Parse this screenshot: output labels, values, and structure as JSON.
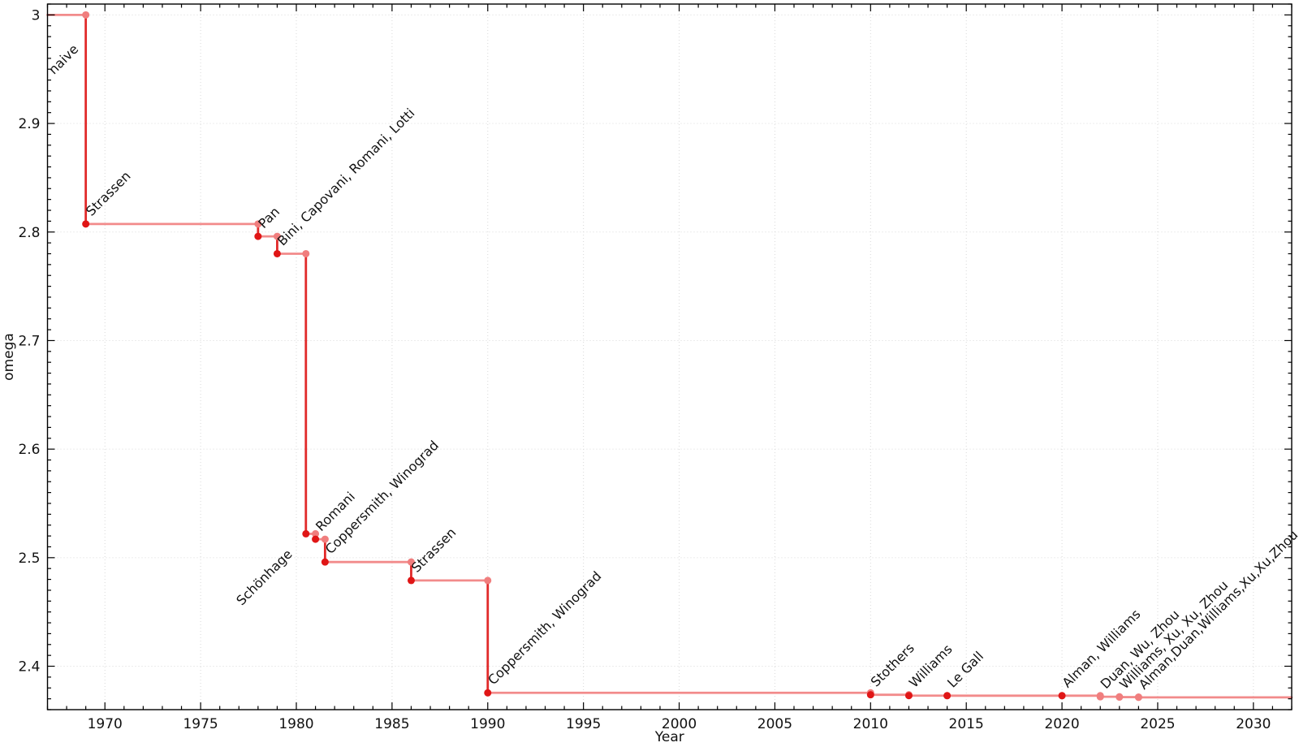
{
  "chart_data": {
    "type": "line",
    "subtype": "step-post-drop",
    "title": "",
    "xlabel": "Year",
    "ylabel": "omega",
    "xlim": [
      1967,
      2032
    ],
    "ylim": [
      2.36,
      3.01
    ],
    "grid": true,
    "legend": "none",
    "x_ticks": [
      {
        "v": 1970,
        "label": "1970"
      },
      {
        "v": 1975,
        "label": "1975"
      },
      {
        "v": 1980,
        "label": "1980"
      },
      {
        "v": 1985,
        "label": "1985"
      },
      {
        "v": 1990,
        "label": "1990"
      },
      {
        "v": 1995,
        "label": "1995"
      },
      {
        "v": 2000,
        "label": "2000"
      },
      {
        "v": 2005,
        "label": "2005"
      },
      {
        "v": 2010,
        "label": "2010"
      },
      {
        "v": 2015,
        "label": "2015"
      },
      {
        "v": 2020,
        "label": "2020"
      },
      {
        "v": 2025,
        "label": "2025"
      },
      {
        "v": 2030,
        "label": "2030"
      }
    ],
    "y_ticks": [
      {
        "v": 2.4,
        "label": "2.4"
      },
      {
        "v": 2.5,
        "label": "2.5"
      },
      {
        "v": 2.6,
        "label": "2.6"
      },
      {
        "v": 2.7,
        "label": "2.7"
      },
      {
        "v": 2.8,
        "label": "2.8"
      },
      {
        "v": 2.9,
        "label": "2.9"
      },
      {
        "v": 3.0,
        "label": "3"
      }
    ],
    "x_minor_step": 1,
    "y_minor_step": 0.01,
    "start": {
      "x": 1967,
      "omega": 3.0,
      "label": "naive",
      "label_dx": 8,
      "label_dy": 74
    },
    "points": [
      {
        "x": 1969,
        "year": "1969",
        "omega": 2.8074,
        "label": "Strassen",
        "confirmed": true
      },
      {
        "x": 1978,
        "year": "1978",
        "omega": 2.796,
        "label": "Pan",
        "confirmed": true
      },
      {
        "x": 1979,
        "year": "1979",
        "omega": 2.78,
        "label": "Bini, Capovani, Romani, Lotti",
        "confirmed": true
      },
      {
        "x": 1980.5,
        "year": "1981",
        "omega": 2.522,
        "label": "Schönhage",
        "confirmed": true,
        "label_anchor": "end",
        "label_dx": -16,
        "label_dy": 26
      },
      {
        "x": 1981,
        "year": "1981",
        "omega": 2.517,
        "label": "Romani",
        "confirmed": true
      },
      {
        "x": 1981.5,
        "year": "1982",
        "omega": 2.496,
        "label": "Coppersmith, Winograd",
        "confirmed": true
      },
      {
        "x": 1986,
        "year": "1986",
        "omega": 2.479,
        "label": "Strassen",
        "confirmed": true
      },
      {
        "x": 1990,
        "year": "1990",
        "omega": 2.3755,
        "label": "Coppersmith, Winograd",
        "confirmed": true
      },
      {
        "x": 2010,
        "year": "2010",
        "omega": 2.3737,
        "label": "Stothers",
        "confirmed": true
      },
      {
        "x": 2012,
        "year": "2012",
        "omega": 2.3729,
        "label": "Williams",
        "confirmed": true
      },
      {
        "x": 2014,
        "year": "2014",
        "omega": 2.3728639,
        "label": "Le Gall",
        "confirmed": true
      },
      {
        "x": 2020,
        "year": "2020",
        "omega": 2.3728596,
        "label": "Alman, Williams",
        "confirmed": true
      },
      {
        "x": 2022,
        "year": "2022",
        "omega": 2.371866,
        "label": "Duan, Wu, Zhou",
        "confirmed": false
      },
      {
        "x": 2023,
        "year": "2023",
        "omega": 2.371552,
        "label": "Williams, Xu, Xu, Zhou",
        "confirmed": false
      },
      {
        "x": 2024,
        "year": "2024",
        "omega": 2.371339,
        "label": "Alman,Duan,Williams,Xu,Xu,Zhou",
        "confirmed": false
      }
    ],
    "line_end_x": 2032,
    "colors": {
      "drop_line": "#e12a2a",
      "plateau_line": "#f28b8b",
      "confirmed_point": "#e01616",
      "plateau_point": "#f07e7e",
      "unconfirmed_point": "#f07e7e",
      "confirmed_label": "#1a1a1a",
      "unconfirmed_label": "#909090",
      "grid": "#d9d9d9",
      "frame": "#000000"
    }
  }
}
